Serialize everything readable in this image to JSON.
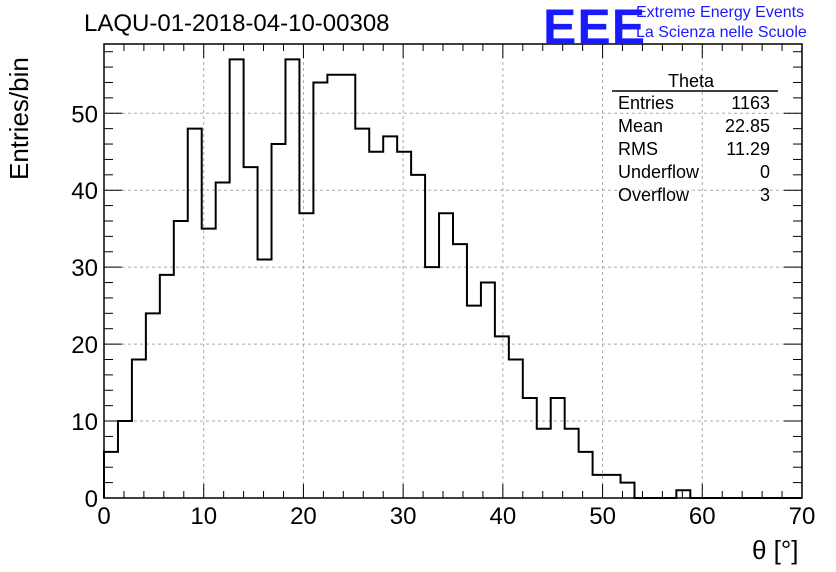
{
  "header": {
    "title": "LAQU-01-2018-04-10-00308",
    "logo_text": "EEE",
    "logo_line1": "Extreme Energy Events",
    "logo_line2": "La Scienza nelle Scuole"
  },
  "stats": {
    "title": "Theta",
    "rows": [
      {
        "label": "Entries",
        "value": "1163"
      },
      {
        "label": "Mean",
        "value": "22.85"
      },
      {
        "label": "RMS",
        "value": "11.29"
      },
      {
        "label": "Underflow",
        "value": "0"
      },
      {
        "label": "Overflow",
        "value": "3"
      }
    ]
  },
  "colors": {
    "line": "#000000",
    "grid": "#aaaaaa",
    "logo": "#1a1aff"
  },
  "chart_data": {
    "type": "histogram",
    "title": "LAQU-01-2018-04-10-00308",
    "xlabel": "θ [°]",
    "ylabel": "Entries/bin",
    "xlim": [
      0,
      70
    ],
    "ylim": [
      0,
      59
    ],
    "bin_width": 1.4,
    "bin_edges_start": 0,
    "values": [
      6,
      10,
      18,
      24,
      29,
      36,
      48,
      35,
      41,
      57,
      43,
      31,
      46,
      57,
      37,
      54,
      55,
      55,
      48,
      45,
      47,
      45,
      42,
      30,
      37,
      33,
      25,
      28,
      21,
      18,
      13,
      9,
      13,
      9,
      6,
      3,
      3,
      2,
      0,
      0,
      0,
      1,
      0,
      0,
      0,
      0,
      0,
      0,
      0,
      0
    ],
    "xticks": [
      0,
      10,
      20,
      30,
      40,
      50,
      60,
      70
    ],
    "yticks": [
      0,
      10,
      20,
      30,
      40,
      50
    ],
    "grid": true,
    "legend": "stats box top-right"
  }
}
